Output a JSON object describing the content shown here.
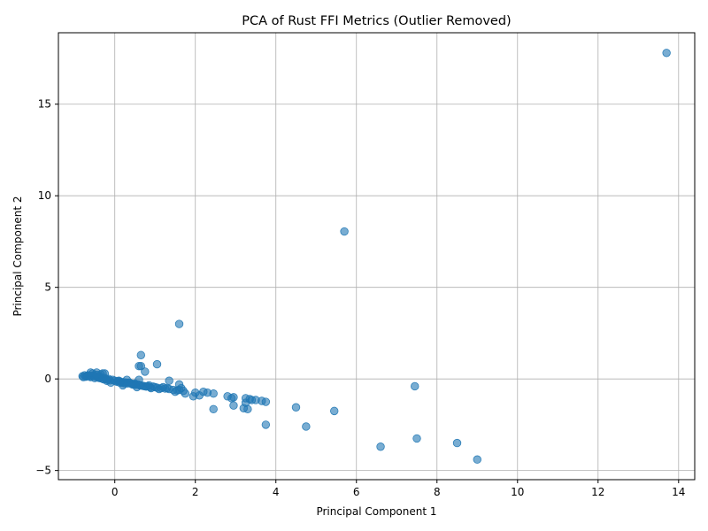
{
  "chart_data": {
    "type": "scatter",
    "title": "PCA of Rust FFI Metrics (Outlier Removed)",
    "xlabel": "Principal Component 1",
    "ylabel": "Principal Component 2",
    "xlim": [
      -1.4,
      14.4
    ],
    "ylim": [
      -5.5,
      18.9
    ],
    "xticks": [
      0,
      2,
      4,
      6,
      8,
      10,
      12,
      14
    ],
    "yticks": [
      -5,
      0,
      5,
      10,
      15
    ],
    "xtick_labels": [
      "0",
      "2",
      "4",
      "6",
      "8",
      "10",
      "12",
      "14"
    ],
    "ytick_labels": [
      "−5",
      "0",
      "5",
      "10",
      "15"
    ],
    "grid": true,
    "color": "#1f77b4",
    "points": [
      [
        13.7,
        17.8
      ],
      [
        5.7,
        8.05
      ],
      [
        1.6,
        3.0
      ],
      [
        0.65,
        1.3
      ],
      [
        1.05,
        0.8
      ],
      [
        0.6,
        0.7
      ],
      [
        0.65,
        0.7
      ],
      [
        0.75,
        0.4
      ],
      [
        7.45,
        -0.4
      ],
      [
        9.0,
        -4.4
      ],
      [
        8.5,
        -3.5
      ],
      [
        7.5,
        -3.25
      ],
      [
        6.6,
        -3.7
      ],
      [
        5.45,
        -1.75
      ],
      [
        4.75,
        -2.6
      ],
      [
        3.75,
        -2.5
      ],
      [
        4.5,
        -1.55
      ],
      [
        2.45,
        -1.65
      ],
      [
        3.2,
        -1.6
      ],
      [
        3.3,
        -1.65
      ],
      [
        2.95,
        -1.45
      ],
      [
        3.25,
        -1.3
      ],
      [
        3.75,
        -1.25
      ],
      [
        3.65,
        -1.2
      ],
      [
        3.5,
        -1.15
      ],
      [
        3.35,
        -1.1
      ],
      [
        3.25,
        -1.05
      ],
      [
        3.4,
        -1.15
      ],
      [
        2.95,
        -1.0
      ],
      [
        2.8,
        -0.95
      ],
      [
        2.9,
        -1.05
      ],
      [
        2.45,
        -0.8
      ],
      [
        2.3,
        -0.75
      ],
      [
        2.2,
        -0.7
      ],
      [
        2.1,
        -0.9
      ],
      [
        1.95,
        -0.95
      ],
      [
        2.0,
        -0.75
      ],
      [
        1.75,
        -0.8
      ],
      [
        1.6,
        -0.6
      ],
      [
        1.65,
        -0.5
      ],
      [
        1.6,
        -0.3
      ],
      [
        1.5,
        -0.7
      ],
      [
        1.35,
        -0.1
      ],
      [
        1.3,
        -0.5
      ],
      [
        1.2,
        -0.45
      ],
      [
        1.1,
        -0.55
      ],
      [
        1.0,
        -0.45
      ],
      [
        0.9,
        -0.5
      ],
      [
        0.85,
        -0.35
      ],
      [
        0.75,
        -0.4
      ],
      [
        0.65,
        -0.35
      ],
      [
        0.6,
        -0.05
      ],
      [
        0.55,
        -0.45
      ],
      [
        0.5,
        -0.25
      ],
      [
        0.45,
        -0.3
      ],
      [
        0.35,
        -0.2
      ],
      [
        0.3,
        -0.05
      ],
      [
        0.25,
        -0.25
      ],
      [
        0.2,
        -0.35
      ],
      [
        0.15,
        -0.15
      ],
      [
        0.1,
        -0.1
      ],
      [
        0.05,
        -0.15
      ],
      [
        -0.05,
        -0.05
      ],
      [
        -0.1,
        -0.2
      ],
      [
        -0.15,
        0.0
      ],
      [
        -0.2,
        -0.1
      ],
      [
        -0.25,
        0.05
      ],
      [
        -0.3,
        0.3
      ],
      [
        -0.35,
        0.1
      ],
      [
        -0.4,
        0.15
      ],
      [
        -0.45,
        0.35
      ],
      [
        -0.5,
        0.05
      ],
      [
        -0.55,
        0.3
      ],
      [
        -0.6,
        0.1
      ],
      [
        -0.65,
        0.2
      ],
      [
        -0.7,
        0.15
      ],
      [
        -0.75,
        0.2
      ],
      [
        -0.8,
        0.15
      ],
      [
        -0.78,
        0.1
      ],
      [
        -0.72,
        0.12
      ],
      [
        -0.68,
        0.18
      ],
      [
        -0.62,
        0.14
      ],
      [
        -0.58,
        0.16
      ],
      [
        -0.52,
        0.2
      ],
      [
        -0.48,
        0.12
      ],
      [
        -0.42,
        0.08
      ],
      [
        -0.38,
        0.05
      ],
      [
        -0.32,
        0.02
      ],
      [
        -0.28,
        -0.02
      ],
      [
        -0.22,
        0.0
      ],
      [
        -0.18,
        -0.05
      ],
      [
        -0.12,
        -0.08
      ],
      [
        0.0,
        -0.1
      ],
      [
        0.08,
        -0.12
      ],
      [
        0.12,
        -0.2
      ],
      [
        0.18,
        -0.22
      ],
      [
        0.22,
        -0.18
      ],
      [
        0.28,
        -0.2
      ],
      [
        0.32,
        -0.25
      ],
      [
        0.38,
        -0.22
      ],
      [
        0.42,
        -0.28
      ],
      [
        0.48,
        -0.3
      ],
      [
        0.52,
        -0.32
      ],
      [
        0.58,
        -0.3
      ],
      [
        0.62,
        -0.35
      ],
      [
        0.7,
        -0.38
      ],
      [
        0.78,
        -0.42
      ],
      [
        0.82,
        -0.4
      ],
      [
        0.88,
        -0.45
      ],
      [
        0.95,
        -0.42
      ],
      [
        1.05,
        -0.48
      ],
      [
        1.15,
        -0.5
      ],
      [
        1.25,
        -0.52
      ],
      [
        1.35,
        -0.55
      ],
      [
        1.45,
        -0.6
      ],
      [
        1.55,
        -0.62
      ],
      [
        1.7,
        -0.65
      ],
      [
        -0.35,
        0.25
      ],
      [
        -0.25,
        0.3
      ],
      [
        -0.6,
        0.35
      ],
      [
        -0.45,
        0.22
      ]
    ]
  }
}
